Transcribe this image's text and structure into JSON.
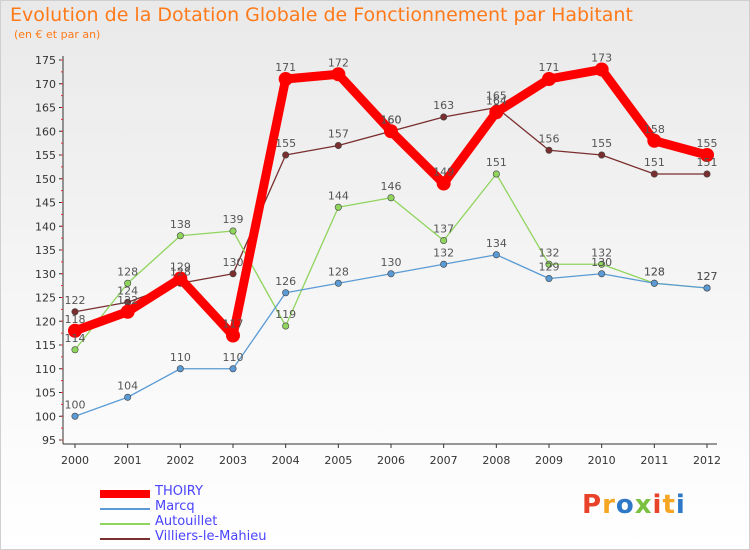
{
  "page": {
    "title": "Evolution de la Dotation Globale de Fonctionnement par Habitant",
    "subtitle": "(en € et par an)"
  },
  "logo": {
    "text": "Proxiti",
    "colors": [
      "#e8422b",
      "#f5a623",
      "#2e78c7",
      "#7ac142",
      "#e8422b",
      "#f5a623",
      "#2e78c7"
    ]
  },
  "chart_data": {
    "type": "line",
    "title": "Evolution de la Dotation Globale de Fonctionnement par Habitant",
    "subtitle": "(en € et par an)",
    "xlabel": "",
    "ylabel": "",
    "x": [
      "2000",
      "2001",
      "2002",
      "2003",
      "2004",
      "2005",
      "2006",
      "2007",
      "2008",
      "2009",
      "2010",
      "2011",
      "2012"
    ],
    "ylim": [
      95,
      175
    ],
    "yticks": [
      95,
      100,
      105,
      110,
      115,
      120,
      125,
      130,
      135,
      140,
      145,
      150,
      155,
      160,
      165,
      170,
      175
    ],
    "grid": false,
    "legend_position": "bottom-left",
    "series": [
      {
        "name": "THOIRY",
        "color": "#ff0000",
        "values": [
          118,
          122,
          129,
          117,
          171,
          172,
          160,
          149,
          164,
          171,
          173,
          158,
          155
        ]
      },
      {
        "name": "Marcq",
        "color": "#5b9bd5",
        "values": [
          100,
          104,
          110,
          110,
          126,
          128,
          130,
          132,
          134,
          129,
          130,
          128,
          127
        ]
      },
      {
        "name": "Autouillet",
        "color": "#8fd45c",
        "values": [
          114,
          128,
          138,
          139,
          119,
          144,
          146,
          137,
          151,
          132,
          132,
          128,
          127
        ]
      },
      {
        "name": "Villiers-le-Mahieu",
        "color": "#7a2e2e",
        "values": [
          122,
          124,
          128,
          130,
          155,
          157,
          160,
          163,
          165,
          156,
          155,
          151,
          151
        ]
      }
    ]
  }
}
